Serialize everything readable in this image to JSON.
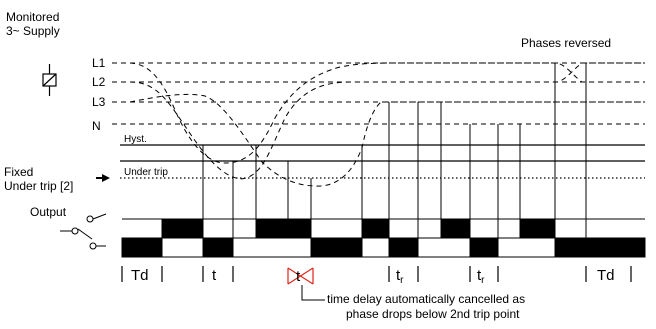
{
  "labels": {
    "monitored_line1": "Monitored",
    "monitored_line2": "3~ Supply",
    "phases_reversed": "Phases reversed",
    "l1": "L1",
    "l2": "L2",
    "l3": "L3",
    "n": "N",
    "hyst": "Hyst.",
    "under_trip": "Under trip",
    "fixed_line1": "Fixed",
    "fixed_line2": "Under trip [2]",
    "output": "Output",
    "annotation_line1": "time delay automatically cancelled as",
    "annotation_line2": "phase drops below 2nd trip point"
  },
  "timing": {
    "td1": "Td",
    "t1": "t",
    "t_cancelled": "t",
    "tr1": "t",
    "tr1_sub": "r",
    "tr2": "t",
    "tr2_sub": "r",
    "td2": "Td"
  },
  "colors": {
    "line": "#000000",
    "output_fill": "#000000",
    "cancel_mark": "#e0231b"
  }
}
